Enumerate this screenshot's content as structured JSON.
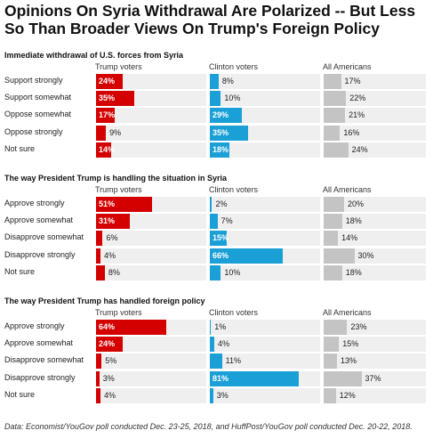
{
  "title": "Opinions On Syria Withdrawal Are Polarized -- But Less So Than Broader Views On Trump's Foreign Policy",
  "colors": {
    "trump": "#d40000",
    "clinton": "#1aa0d6",
    "all": "#c4c4c4",
    "track": "#efefef"
  },
  "source": "Data: Economist/YouGov poll conducted Dec. 23-25, 2018, and HuffPost/YouGov poll conducted Dec. 20-22, 2018.",
  "chart_data": [
    {
      "type": "bar",
      "title": "Immediate withdrawal of U.S. forces from Syria",
      "categories": [
        "Support strongly",
        "Support somewhat",
        "Oppose somewhat",
        "Oppose strongly",
        "Not sure"
      ],
      "series": [
        {
          "name": "Trump voters",
          "values": [
            24,
            35,
            17,
            9,
            14
          ]
        },
        {
          "name": "Clinton voters",
          "values": [
            8,
            10,
            29,
            35,
            18
          ]
        },
        {
          "name": "All Americans",
          "values": [
            17,
            22,
            21,
            16,
            24
          ]
        }
      ]
    },
    {
      "type": "bar",
      "title": "The way President Trump is handling the situation in Syria",
      "categories": [
        "Approve strongly",
        "Approve somewhat",
        "Disapprove somewhat",
        "Disapprove strongly",
        "Not sure"
      ],
      "series": [
        {
          "name": "Trump voters",
          "values": [
            51,
            31,
            6,
            4,
            8
          ]
        },
        {
          "name": "Clinton voters",
          "values": [
            2,
            7,
            15,
            66,
            10
          ]
        },
        {
          "name": "All Americans",
          "values": [
            20,
            18,
            14,
            30,
            18
          ]
        }
      ]
    },
    {
      "type": "bar",
      "title": "The way President Trump has handled foreign policy",
      "categories": [
        "Approve strongly",
        "Approve somewhat",
        "Disapprove somewhat",
        "Disapprove strongly",
        "Not sure"
      ],
      "series": [
        {
          "name": "Trump voters",
          "values": [
            64,
            24,
            5,
            3,
            4
          ]
        },
        {
          "name": "Clinton voters",
          "values": [
            1,
            4,
            11,
            81,
            3
          ]
        },
        {
          "name": "All Americans",
          "values": [
            23,
            15,
            13,
            37,
            12
          ]
        }
      ]
    }
  ]
}
